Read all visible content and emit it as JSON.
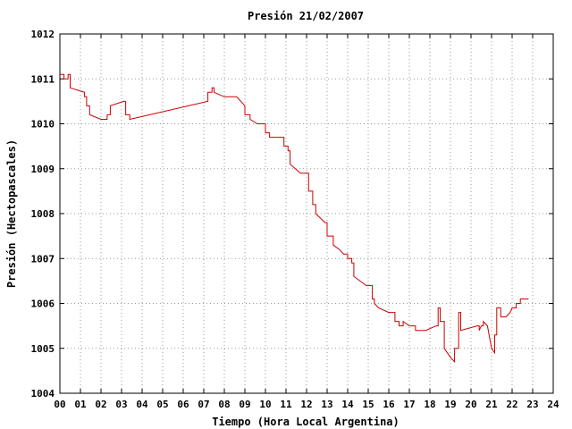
{
  "chart_data": {
    "type": "line",
    "title": "Presión 21/02/2007",
    "xlabel": "Tiempo (Hora Local Argentina)",
    "ylabel": "Presión (Hectopascales)",
    "xlim": [
      0,
      24
    ],
    "ylim": [
      1004,
      1012
    ],
    "x_ticks": [
      "00",
      "01",
      "02",
      "03",
      "04",
      "05",
      "06",
      "07",
      "08",
      "09",
      "10",
      "11",
      "12",
      "13",
      "14",
      "15",
      "16",
      "17",
      "18",
      "19",
      "20",
      "21",
      "22",
      "23",
      "24"
    ],
    "y_ticks": [
      "1004",
      "1005",
      "1006",
      "1007",
      "1008",
      "1009",
      "1010",
      "1011",
      "1012"
    ],
    "grid": true,
    "line_color": "#cc0000",
    "series": [
      {
        "points": [
          [
            0.0,
            1011.1
          ],
          [
            0.2,
            1011.1
          ],
          [
            0.2,
            1011.0
          ],
          [
            0.4,
            1011.0
          ],
          [
            0.4,
            1011.1
          ],
          [
            0.5,
            1011.1
          ],
          [
            0.5,
            1010.8
          ],
          [
            1.2,
            1010.7
          ],
          [
            1.2,
            1010.6
          ],
          [
            1.3,
            1010.6
          ],
          [
            1.3,
            1010.4
          ],
          [
            1.45,
            1010.4
          ],
          [
            1.45,
            1010.2
          ],
          [
            2.0,
            1010.1
          ],
          [
            2.3,
            1010.1
          ],
          [
            2.3,
            1010.2
          ],
          [
            2.45,
            1010.2
          ],
          [
            2.45,
            1010.4
          ],
          [
            3.1,
            1010.5
          ],
          [
            3.2,
            1010.5
          ],
          [
            3.2,
            1010.2
          ],
          [
            3.4,
            1010.2
          ],
          [
            3.4,
            1010.1
          ],
          [
            7.2,
            1010.5
          ],
          [
            7.2,
            1010.7
          ],
          [
            7.4,
            1010.7
          ],
          [
            7.4,
            1010.8
          ],
          [
            7.5,
            1010.8
          ],
          [
            7.5,
            1010.7
          ],
          [
            8.0,
            1010.6
          ],
          [
            8.6,
            1010.6
          ],
          [
            9.0,
            1010.4
          ],
          [
            9.0,
            1010.2
          ],
          [
            9.25,
            1010.2
          ],
          [
            9.25,
            1010.1
          ],
          [
            9.6,
            1010.0
          ],
          [
            10.0,
            1010.0
          ],
          [
            10.0,
            1009.8
          ],
          [
            10.2,
            1009.8
          ],
          [
            10.2,
            1009.7
          ],
          [
            10.9,
            1009.7
          ],
          [
            10.9,
            1009.5
          ],
          [
            11.1,
            1009.5
          ],
          [
            11.1,
            1009.4
          ],
          [
            11.2,
            1009.4
          ],
          [
            11.2,
            1009.1
          ],
          [
            11.7,
            1008.9
          ],
          [
            12.1,
            1008.9
          ],
          [
            12.1,
            1008.5
          ],
          [
            12.3,
            1008.5
          ],
          [
            12.3,
            1008.2
          ],
          [
            12.45,
            1008.2
          ],
          [
            12.45,
            1008.0
          ],
          [
            12.9,
            1007.8
          ],
          [
            13.0,
            1007.8
          ],
          [
            13.0,
            1007.5
          ],
          [
            13.3,
            1007.5
          ],
          [
            13.3,
            1007.3
          ],
          [
            13.6,
            1007.2
          ],
          [
            13.8,
            1007.1
          ],
          [
            14.0,
            1007.1
          ],
          [
            14.0,
            1007.0
          ],
          [
            14.2,
            1007.0
          ],
          [
            14.2,
            1006.9
          ],
          [
            14.3,
            1006.9
          ],
          [
            14.3,
            1006.6
          ],
          [
            14.9,
            1006.4
          ],
          [
            15.2,
            1006.4
          ],
          [
            15.2,
            1006.1
          ],
          [
            15.3,
            1006.1
          ],
          [
            15.3,
            1006.0
          ],
          [
            15.5,
            1005.9
          ],
          [
            16.0,
            1005.8
          ],
          [
            16.3,
            1005.8
          ],
          [
            16.3,
            1005.6
          ],
          [
            16.5,
            1005.6
          ],
          [
            16.5,
            1005.5
          ],
          [
            16.7,
            1005.5
          ],
          [
            16.7,
            1005.6
          ],
          [
            17.0,
            1005.5
          ],
          [
            17.3,
            1005.5
          ],
          [
            17.3,
            1005.4
          ],
          [
            17.8,
            1005.4
          ],
          [
            18.3,
            1005.5
          ],
          [
            18.4,
            1005.5
          ],
          [
            18.4,
            1005.9
          ],
          [
            18.5,
            1005.9
          ],
          [
            18.5,
            1005.6
          ],
          [
            18.7,
            1005.6
          ],
          [
            18.7,
            1005.0
          ],
          [
            19.0,
            1004.8
          ],
          [
            19.2,
            1004.7
          ],
          [
            19.2,
            1005.0
          ],
          [
            19.4,
            1005.0
          ],
          [
            19.4,
            1005.8
          ],
          [
            19.5,
            1005.8
          ],
          [
            19.5,
            1005.4
          ],
          [
            20.3,
            1005.5
          ],
          [
            20.4,
            1005.5
          ],
          [
            20.4,
            1005.4
          ],
          [
            20.5,
            1005.5
          ],
          [
            20.6,
            1005.5
          ],
          [
            20.6,
            1005.6
          ],
          [
            20.8,
            1005.5
          ],
          [
            21.0,
            1005.0
          ],
          [
            21.15,
            1004.9
          ],
          [
            21.15,
            1005.3
          ],
          [
            21.25,
            1005.3
          ],
          [
            21.25,
            1005.9
          ],
          [
            21.45,
            1005.9
          ],
          [
            21.45,
            1005.7
          ],
          [
            21.7,
            1005.7
          ],
          [
            21.9,
            1005.8
          ],
          [
            22.0,
            1005.9
          ],
          [
            22.2,
            1005.9
          ],
          [
            22.2,
            1006.0
          ],
          [
            22.4,
            1006.0
          ],
          [
            22.4,
            1006.1
          ],
          [
            22.8,
            1006.1
          ]
        ]
      }
    ]
  }
}
